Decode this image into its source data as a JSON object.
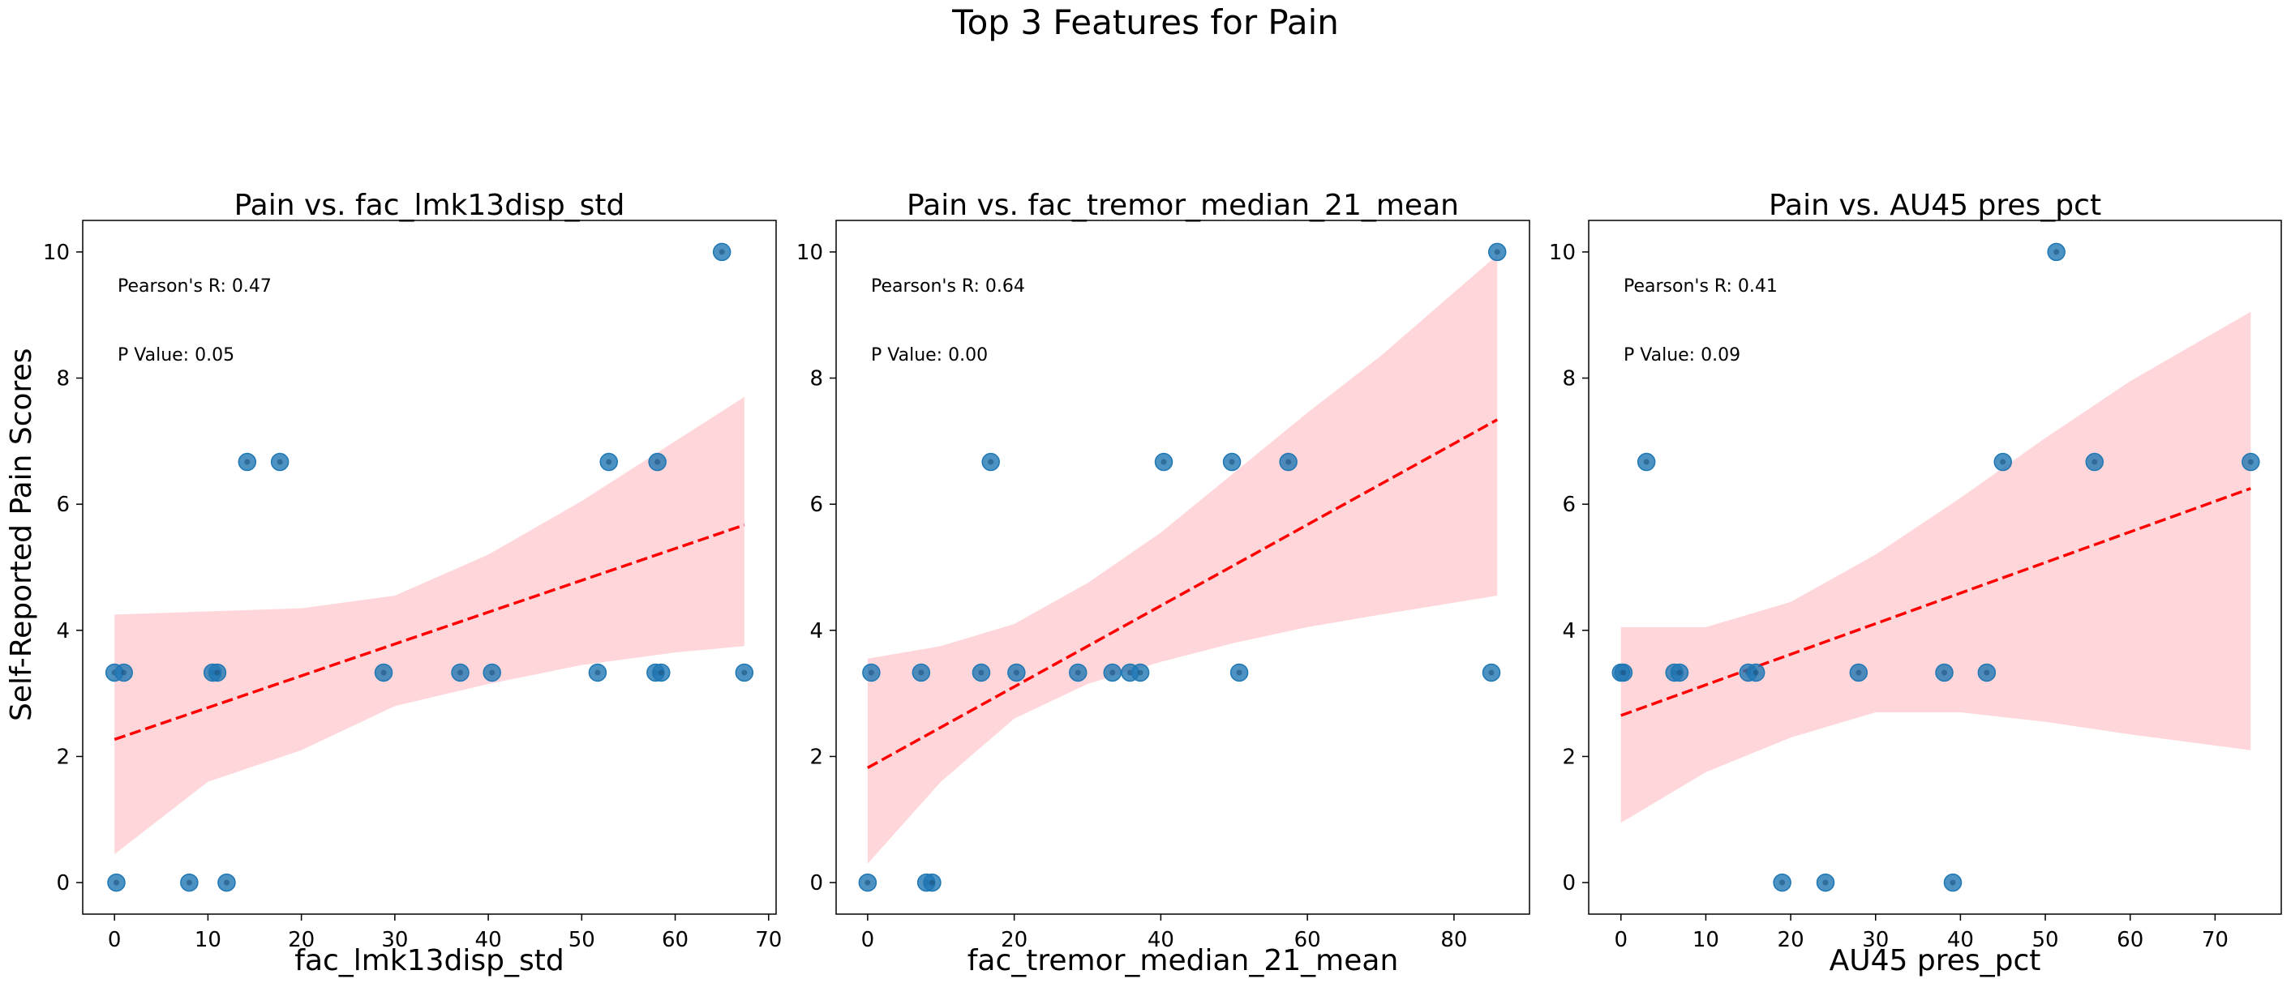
{
  "figure": {
    "title": "Top 3 Features for Pain",
    "ylabel": "Self-Reported Pain Scores"
  },
  "chart_data": [
    {
      "type": "scatter",
      "title": "Pain vs. fac_lmk13disp_std",
      "xlabel": "fac_lmk13disp_std",
      "ylabel": "Self-Reported Pain Scores",
      "xlim": [
        -3.4,
        70.8
      ],
      "ylim": [
        -0.5,
        10.5
      ],
      "xticks": [
        0,
        10,
        20,
        30,
        40,
        50,
        60,
        70
      ],
      "yticks": [
        0,
        2,
        4,
        6,
        8,
        10
      ],
      "annotations": [
        "Pearson's R: 0.47",
        "P Value: 0.05"
      ],
      "points": {
        "x": [
          0.0,
          0.2,
          1.0,
          8.0,
          10.5,
          11.0,
          12.0,
          14.2,
          17.7,
          28.8,
          37.0,
          40.4,
          51.7,
          52.9,
          57.9,
          58.1,
          58.5,
          65.0,
          67.4
        ],
        "y": [
          3.33,
          0.0,
          3.33,
          0.0,
          3.33,
          3.33,
          0.0,
          6.67,
          6.67,
          3.33,
          3.33,
          3.33,
          3.33,
          6.67,
          3.33,
          6.67,
          3.33,
          10.0,
          3.33
        ]
      },
      "regression": {
        "x": [
          0.0,
          67.4
        ],
        "y": [
          2.27,
          5.67
        ]
      },
      "confidence_band": {
        "x": [
          0,
          10,
          20,
          30,
          40,
          50,
          60,
          67.4
        ],
        "lower": [
          0.45,
          1.6,
          2.1,
          2.8,
          3.15,
          3.45,
          3.65,
          3.75
        ],
        "upper": [
          4.25,
          4.3,
          4.35,
          4.55,
          5.2,
          6.05,
          7.0,
          7.7
        ]
      },
      "colors": {
        "points": "#1f77b4",
        "regression": "#ff0000",
        "band": "#ffd6d9"
      }
    },
    {
      "type": "scatter",
      "title": "Pain vs. fac_tremor_median_21_mean",
      "xlabel": "fac_tremor_median_21_mean",
      "ylabel": "",
      "xlim": [
        -4.3,
        90.3
      ],
      "ylim": [
        -0.5,
        10.5
      ],
      "xticks": [
        0,
        20,
        40,
        60,
        80
      ],
      "yticks": [
        0,
        2,
        4,
        6,
        8,
        10
      ],
      "annotations": [
        "Pearson's R: 0.64",
        "P Value: 0.00"
      ],
      "points": {
        "x": [
          0.0,
          0.5,
          7.3,
          8.0,
          8.8,
          15.5,
          16.8,
          20.3,
          28.7,
          33.4,
          35.8,
          37.2,
          40.4,
          49.7,
          50.7,
          57.4,
          85.1,
          85.9
        ],
        "y": [
          0.0,
          3.33,
          3.33,
          0.0,
          0.0,
          3.33,
          6.67,
          3.33,
          3.33,
          3.33,
          3.33,
          3.33,
          6.67,
          6.67,
          3.33,
          6.67,
          3.33,
          10.0
        ]
      },
      "regression": {
        "x": [
          0.0,
          85.9
        ],
        "y": [
          1.82,
          7.34
        ]
      },
      "confidence_band": {
        "x": [
          0,
          10,
          20,
          30,
          40,
          50,
          60,
          70,
          85.9
        ],
        "lower": [
          0.3,
          1.6,
          2.6,
          3.15,
          3.5,
          3.8,
          4.05,
          4.25,
          4.55
        ],
        "upper": [
          3.55,
          3.75,
          4.1,
          4.75,
          5.55,
          6.5,
          7.45,
          8.35,
          9.95
        ]
      },
      "colors": {
        "points": "#1f77b4",
        "regression": "#ff0000",
        "band": "#ffd6d9"
      }
    },
    {
      "type": "scatter",
      "title": "Pain vs. AU45 pres_pct",
      "xlabel": "AU45 pres_pct",
      "ylabel": "",
      "xlim": [
        -3.8,
        77.8
      ],
      "ylim": [
        -0.5,
        10.5
      ],
      "xticks": [
        0,
        10,
        20,
        30,
        40,
        50,
        60,
        70
      ],
      "yticks": [
        0,
        2,
        4,
        6,
        8,
        10
      ],
      "annotations": [
        "Pearson's R: 0.41",
        "P Value: 0.09"
      ],
      "points": {
        "x": [
          0.0,
          0.3,
          3.0,
          6.3,
          6.9,
          15.0,
          15.9,
          19.0,
          24.1,
          28.0,
          38.1,
          39.1,
          43.1,
          45.0,
          51.3,
          55.8,
          74.2
        ],
        "y": [
          3.33,
          3.33,
          6.67,
          3.33,
          3.33,
          3.33,
          3.33,
          0.0,
          0.0,
          3.33,
          3.33,
          0.0,
          3.33,
          6.67,
          10.0,
          6.67,
          6.67
        ]
      },
      "regression": {
        "x": [
          0.0,
          74.2
        ],
        "y": [
          2.65,
          6.25
        ]
      },
      "confidence_band": {
        "x": [
          0,
          10,
          20,
          30,
          40,
          50,
          60,
          74.2
        ],
        "lower": [
          0.95,
          1.75,
          2.3,
          2.7,
          2.7,
          2.55,
          2.35,
          2.1
        ],
        "upper": [
          4.05,
          4.05,
          4.45,
          5.2,
          6.1,
          7.05,
          7.95,
          9.05
        ]
      },
      "colors": {
        "points": "#1f77b4",
        "regression": "#ff0000",
        "band": "#ffd6d9"
      }
    }
  ]
}
